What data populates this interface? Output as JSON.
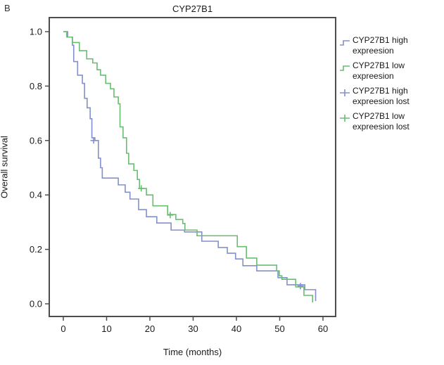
{
  "panel_label": "B",
  "title": "CYP27B1",
  "axes": {
    "x_label": "Time (months)",
    "y_label": "Overall survival",
    "x_ticks": [
      0,
      10,
      20,
      30,
      40,
      50,
      60
    ],
    "y_ticks": [
      "0.0",
      "0.2",
      "0.4",
      "0.6",
      "0.8",
      "1.0"
    ]
  },
  "colors": {
    "high_expression": "#8390cb",
    "low_expression": "#69bd71",
    "axis": "#4d4d4d",
    "text": "#1a1a1a"
  },
  "legend": {
    "items": [
      {
        "label": "CYP27B1 high expreesion",
        "symbol": "step",
        "color": "#8390cb"
      },
      {
        "label": "CYP27B1 low expreesion",
        "symbol": "step",
        "color": "#69bd71"
      },
      {
        "label": "CYP27B1 high expreesion lost",
        "symbol": "censor",
        "color": "#8390cb"
      },
      {
        "label": "CYP27B1 low expreesion lost",
        "symbol": "censor",
        "color": "#69bd71"
      }
    ]
  },
  "chart_data": {
    "type": "line",
    "subtype": "kaplan-meier-step",
    "title": "CYP27B1",
    "xlabel": "Time (months)",
    "ylabel": "Overall survival",
    "xlim": [
      -3.5,
      63
    ],
    "ylim": [
      -0.035,
      1.035
    ],
    "grid": false,
    "legend_position": "right-outside",
    "series": [
      {
        "name": "CYP27B1 high expreesion",
        "color": "#8390cb",
        "points": [
          [
            0,
            1.0
          ],
          [
            1.0,
            0.98
          ],
          [
            2.1,
            0.95
          ],
          [
            2.4,
            0.89
          ],
          [
            3.3,
            0.84
          ],
          [
            4.4,
            0.81
          ],
          [
            4.9,
            0.755
          ],
          [
            5.5,
            0.72
          ],
          [
            6.2,
            0.68
          ],
          [
            6.6,
            0.61
          ],
          [
            7.3,
            0.6
          ],
          [
            8.1,
            0.535
          ],
          [
            8.6,
            0.5
          ],
          [
            9.0,
            0.462
          ],
          [
            12.7,
            0.437
          ],
          [
            14.3,
            0.41
          ],
          [
            15.4,
            0.385
          ],
          [
            17.4,
            0.346
          ],
          [
            19.2,
            0.32
          ],
          [
            21.6,
            0.297
          ],
          [
            24.9,
            0.271
          ],
          [
            28.0,
            0.264
          ],
          [
            32.0,
            0.23
          ],
          [
            35.8,
            0.207
          ],
          [
            37.9,
            0.186
          ],
          [
            39.8,
            0.165
          ],
          [
            41.5,
            0.14
          ],
          [
            44.7,
            0.121
          ],
          [
            49.6,
            0.096
          ],
          [
            51.7,
            0.07
          ],
          [
            55.8,
            0.052
          ],
          [
            58.3,
            0.01
          ]
        ],
        "censors": [
          [
            7.0,
            0.6
          ],
          [
            54.8,
            0.065
          ]
        ]
      },
      {
        "name": "CYP27B1 low expreesion",
        "color": "#69bd71",
        "points": [
          [
            0,
            1.0
          ],
          [
            0.8,
            0.98
          ],
          [
            2.1,
            0.96
          ],
          [
            3.7,
            0.93
          ],
          [
            5.4,
            0.9
          ],
          [
            6.8,
            0.885
          ],
          [
            7.8,
            0.86
          ],
          [
            8.6,
            0.84
          ],
          [
            9.8,
            0.81
          ],
          [
            10.9,
            0.79
          ],
          [
            11.7,
            0.76
          ],
          [
            12.7,
            0.735
          ],
          [
            13.1,
            0.65
          ],
          [
            13.8,
            0.61
          ],
          [
            14.6,
            0.553
          ],
          [
            15.1,
            0.514
          ],
          [
            16.3,
            0.49
          ],
          [
            17.1,
            0.457
          ],
          [
            17.6,
            0.424
          ],
          [
            19.2,
            0.4
          ],
          [
            20.7,
            0.36
          ],
          [
            24.1,
            0.328
          ],
          [
            26.0,
            0.31
          ],
          [
            27.6,
            0.295
          ],
          [
            28.1,
            0.271
          ],
          [
            30.9,
            0.25
          ],
          [
            40.2,
            0.21
          ],
          [
            42.3,
            0.168
          ],
          [
            44.7,
            0.142
          ],
          [
            49.3,
            0.121
          ],
          [
            49.9,
            0.103
          ],
          [
            50.5,
            0.09
          ],
          [
            53.7,
            0.062
          ],
          [
            55.6,
            0.031
          ],
          [
            57.6,
            0.005
          ]
        ],
        "censors": [
          [
            18.0,
            0.424
          ],
          [
            24.7,
            0.326
          ]
        ]
      }
    ]
  }
}
